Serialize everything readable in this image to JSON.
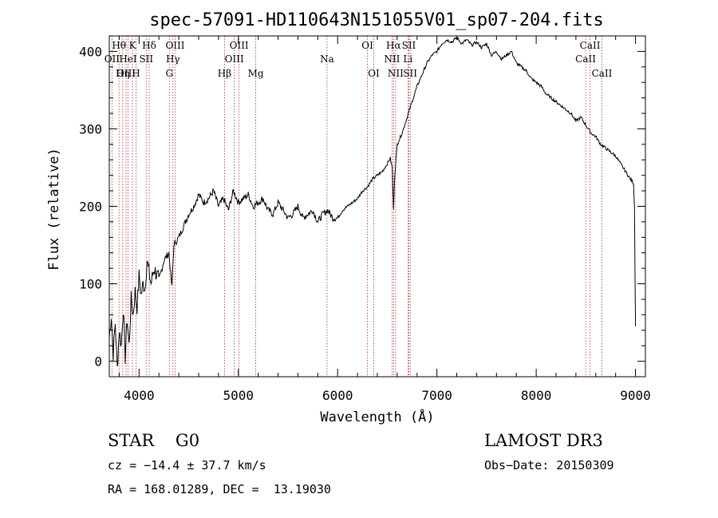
{
  "chart_data": {
    "type": "line",
    "title": "spec-57091-HD110643N151055V01_sp07-204.fits",
    "xlabel": "Wavelength (Å)",
    "ylabel": "Flux (relative)",
    "xlim": [
      3700,
      9100
    ],
    "ylim": [
      -20,
      420
    ],
    "xticks": [
      4000,
      5000,
      6000,
      7000,
      8000,
      9000
    ],
    "yticks": [
      0,
      100,
      200,
      300,
      400
    ],
    "x_minor_step": 200,
    "y_minor_step": 20,
    "series": [
      {
        "name": "flux",
        "x": [
          3700,
          3720,
          3740,
          3760,
          3780,
          3800,
          3820,
          3840,
          3860,
          3880,
          3900,
          3920,
          3940,
          3960,
          3980,
          4000,
          4020,
          4040,
          4060,
          4080,
          4100,
          4120,
          4150,
          4200,
          4250,
          4300,
          4330,
          4350,
          4400,
          4450,
          4500,
          4550,
          4600,
          4650,
          4700,
          4750,
          4800,
          4850,
          4900,
          4950,
          5000,
          5050,
          5100,
          5150,
          5200,
          5250,
          5300,
          5350,
          5400,
          5450,
          5500,
          5550,
          5600,
          5650,
          5700,
          5750,
          5800,
          5850,
          5900,
          5950,
          6000,
          6050,
          6100,
          6150,
          6200,
          6250,
          6300,
          6350,
          6400,
          6450,
          6500,
          6530,
          6550,
          6563,
          6575,
          6600,
          6650,
          6700,
          6750,
          6800,
          6850,
          6900,
          6950,
          7000,
          7050,
          7100,
          7150,
          7200,
          7250,
          7300,
          7350,
          7400,
          7450,
          7500,
          7550,
          7600,
          7650,
          7700,
          7750,
          7800,
          7850,
          7900,
          7950,
          8000,
          8050,
          8100,
          8150,
          8200,
          8250,
          8300,
          8350,
          8400,
          8450,
          8500,
          8550,
          8600,
          8650,
          8700,
          8750,
          8800,
          8850,
          8900,
          8950,
          8980,
          8990,
          9000
        ],
        "y": [
          30,
          60,
          10,
          50,
          -10,
          40,
          20,
          70,
          5,
          55,
          20,
          80,
          60,
          90,
          70,
          110,
          85,
          100,
          95,
          130,
          115,
          100,
          120,
          105,
          130,
          140,
          95,
          150,
          160,
          175,
          190,
          200,
          215,
          205,
          210,
          220,
          200,
          210,
          195,
          220,
          205,
          210,
          215,
          200,
          205,
          210,
          195,
          190,
          205,
          195,
          185,
          190,
          200,
          185,
          190,
          195,
          180,
          190,
          195,
          185,
          185,
          195,
          200,
          205,
          210,
          220,
          225,
          235,
          240,
          245,
          255,
          262,
          250,
          195,
          240,
          280,
          295,
          315,
          335,
          355,
          370,
          385,
          395,
          400,
          410,
          415,
          412,
          418,
          410,
          415,
          408,
          412,
          405,
          410,
          395,
          400,
          390,
          395,
          400,
          385,
          380,
          375,
          365,
          360,
          355,
          345,
          340,
          335,
          330,
          325,
          320,
          310,
          315,
          305,
          295,
          290,
          280,
          275,
          270,
          265,
          255,
          245,
          235,
          230,
          200,
          45
        ]
      }
    ],
    "spectral_lines": [
      {
        "label": "Hθ",
        "wavelength": 3798,
        "row": 1
      },
      {
        "label": "OII",
        "wavelength": 3727,
        "row": 2
      },
      {
        "label": "OIII",
        "wavelength": 3869,
        "row": 3
      },
      {
        "label": "K",
        "wavelength": 3934,
        "row": 1
      },
      {
        "label": "HeI",
        "wavelength": 3889,
        "row": 2
      },
      {
        "label": "Hη",
        "wavelength": 3835,
        "row": 3
      },
      {
        "label": "SII",
        "wavelength": 4072,
        "row": 2
      },
      {
        "label": "H",
        "wavelength": 3969,
        "row": 3
      },
      {
        "label": "Hδ",
        "wavelength": 4102,
        "row": 1
      },
      {
        "label": "OIII",
        "wavelength": 4363,
        "row": 1
      },
      {
        "label": "Hγ",
        "wavelength": 4341,
        "row": 2
      },
      {
        "label": "G",
        "wavelength": 4305,
        "row": 3
      },
      {
        "label": "Hβ",
        "wavelength": 4861,
        "row": 3
      },
      {
        "label": "OIII",
        "wavelength": 5007,
        "row": 1
      },
      {
        "label": "OIII",
        "wavelength": 4959,
        "row": 2
      },
      {
        "label": "Mg",
        "wavelength": 5175,
        "row": 3
      },
      {
        "label": "Na",
        "wavelength": 5893,
        "row": 2
      },
      {
        "label": "OI",
        "wavelength": 6300,
        "row": 1
      },
      {
        "label": "OI",
        "wavelength": 6364,
        "row": 3
      },
      {
        "label": "Hα",
        "wavelength": 6563,
        "row": 1
      },
      {
        "label": "NII",
        "wavelength": 6548,
        "row": 2
      },
      {
        "label": "NII",
        "wavelength": 6584,
        "row": 3
      },
      {
        "label": "SII",
        "wavelength": 6717,
        "row": 1
      },
      {
        "label": "Li",
        "wavelength": 6708,
        "row": 2
      },
      {
        "label": "SII",
        "wavelength": 6731,
        "row": 3
      },
      {
        "label": "CaII",
        "wavelength": 8542,
        "row": 1
      },
      {
        "label": "CaII",
        "wavelength": 8498,
        "row": 2
      },
      {
        "label": "CaII",
        "wavelength": 8662,
        "row": 3
      }
    ]
  },
  "info": {
    "star_class": "STAR    G0",
    "survey": "LAMOST DR3",
    "cz_line": "cz = −14.4 ± 37.7 km/s",
    "obs_date": "Obs−Date: 20150309",
    "radec": "RA = 168.01289, DEC =  13.19030"
  },
  "colors": {
    "line_marker": "#b03030",
    "spectrum": "#000000",
    "axes": "#000000"
  }
}
